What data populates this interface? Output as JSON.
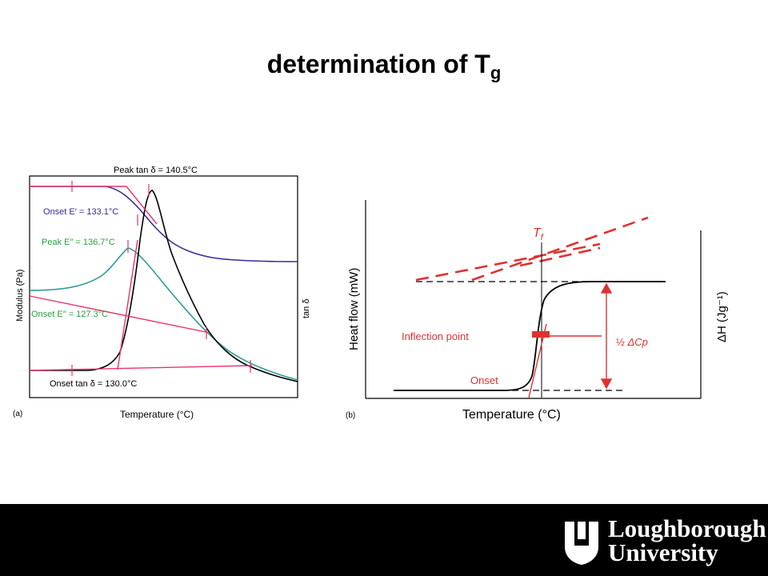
{
  "title": {
    "main": "determination of T",
    "sub": "g"
  },
  "colors": {
    "black": "#000000",
    "purple": "#3d2a9a",
    "pink": "#e8336f",
    "teal": "#2a9a96",
    "green": "#2e9e3e",
    "red": "#e03030",
    "footer": "#000000"
  },
  "panel_a": {
    "label": "(a)",
    "xlabel": "Temperature (°C)",
    "ylabel_left": "Modulus (Pa)",
    "ylabel_right": "tan δ",
    "annotations": {
      "peak_tan": "Peak tan δ = 140.5°C",
      "onset_e1": "Onset E′ = 133.1°C",
      "peak_e2": "Peak E″ = 136.7°C",
      "onset_e2": "Onset E″ = 127.3°C",
      "onset_tan": "Onset tan δ = 130.0°C"
    }
  },
  "panel_b": {
    "label": "(b)",
    "xlabel": "Temperature (°C)",
    "ylabel_left": "Heat flow (mW)",
    "ylabel_right": "ΔH (Jg⁻¹)",
    "tf_main": "T",
    "tf_sub": "f",
    "inflection": "Inflection point",
    "onset": "Onset",
    "dcp_prefix": "½",
    "dcp": "ΔCp"
  },
  "footer": {
    "logo_line1": "Loughborough",
    "logo_line2": "University"
  }
}
